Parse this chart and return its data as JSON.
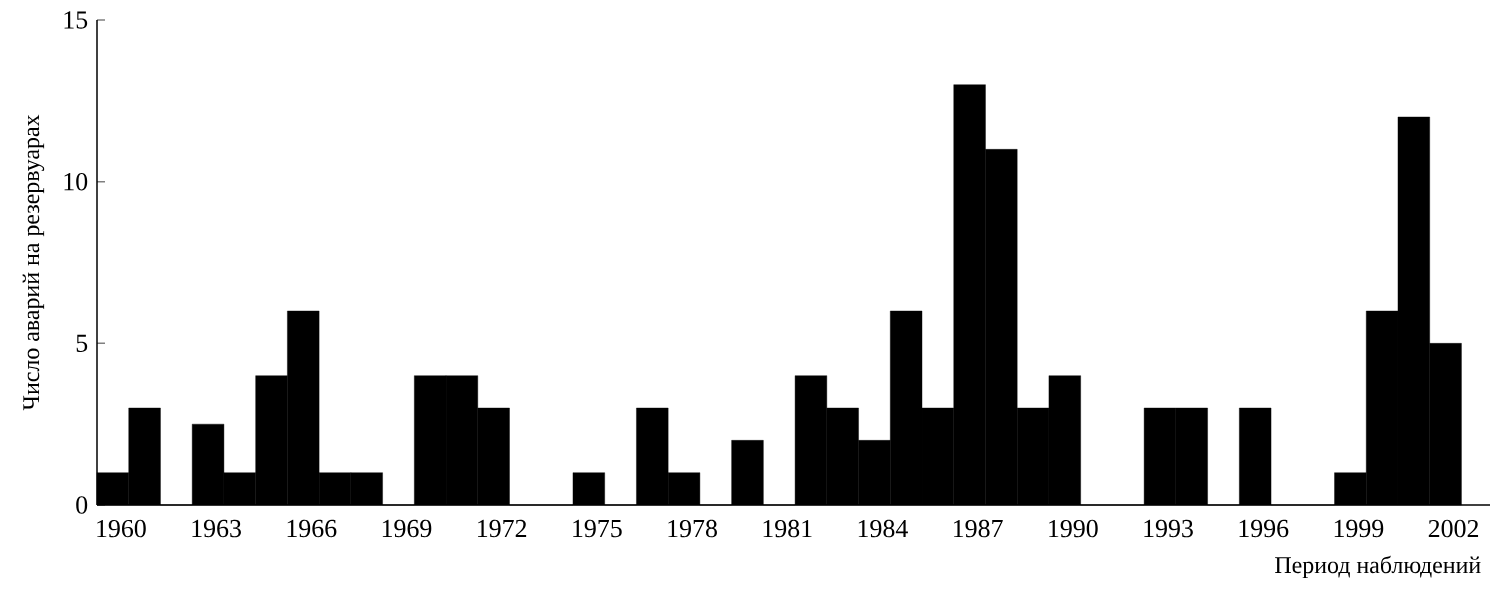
{
  "chart_data": {
    "type": "bar",
    "xlabel": "Период наблюдений",
    "ylabel": "Число аварий на  резервуарах",
    "categories": [
      "1960",
      null,
      null,
      "1963",
      null,
      null,
      "1966",
      null,
      null,
      "1969",
      null,
      null,
      "1972",
      null,
      null,
      "1975",
      null,
      null,
      "1978",
      null,
      null,
      "1981",
      null,
      null,
      "1984",
      null,
      null,
      "1987",
      null,
      null,
      "1990",
      null,
      null,
      "1993",
      null,
      null,
      "1996",
      null,
      null,
      "1999",
      null,
      null,
      "2002"
    ],
    "values": [
      1,
      3,
      0,
      2.5,
      1,
      4,
      6,
      1,
      1,
      0,
      4,
      4,
      3,
      0,
      0,
      1,
      0,
      3,
      1,
      0,
      2,
      0,
      4,
      3,
      2,
      6,
      3,
      13,
      11,
      3,
      4,
      0,
      0,
      3,
      3,
      0,
      3,
      0,
      0,
      1,
      6,
      12,
      5
    ],
    "color": "#000000",
    "ylim": [
      0,
      15
    ],
    "yticks": [
      0,
      5,
      10,
      15
    ]
  }
}
